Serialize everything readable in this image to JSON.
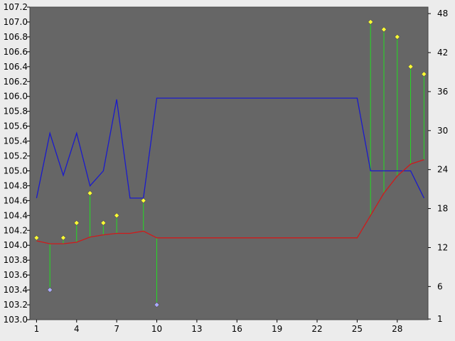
{
  "chart_data": {
    "type": "line",
    "title": "",
    "colors": {
      "background": "#ececec",
      "plot_area": "#666666",
      "blue_series": "#1a1acc",
      "red_series": "#d01a1a",
      "stem": "#22dd22",
      "marker_up": "#ffff33",
      "marker_down": "#aaaaff",
      "marker_edge": "#555555"
    },
    "x": [
      1,
      2,
      3,
      4,
      5,
      6,
      7,
      8,
      9,
      10,
      11,
      12,
      13,
      14,
      15,
      16,
      17,
      18,
      19,
      20,
      21,
      22,
      23,
      24,
      25,
      26,
      27,
      28,
      29,
      30
    ],
    "x_ticks": [
      "1",
      "4",
      "7",
      "10",
      "13",
      "16",
      "19",
      "22",
      "25",
      "28"
    ],
    "x_tick_values": [
      1,
      4,
      7,
      10,
      13,
      16,
      19,
      22,
      25,
      28
    ],
    "xlim": [
      0.5,
      30.3
    ],
    "y_left": {
      "ylim": [
        103.0,
        107.2
      ],
      "ticks": [
        "103.0",
        "103.2",
        "103.4",
        "103.6",
        "103.8",
        "104.0",
        "104.2",
        "104.4",
        "104.6",
        "104.8",
        "105.0",
        "105.2",
        "105.4",
        "105.6",
        "105.8",
        "106.0",
        "106.2",
        "106.4",
        "106.6",
        "106.8",
        "107.0",
        "107.2"
      ],
      "tick_values": [
        103.0,
        103.2,
        103.4,
        103.6,
        103.8,
        104.0,
        104.2,
        104.4,
        104.6,
        104.8,
        105.0,
        105.2,
        105.4,
        105.6,
        105.8,
        106.0,
        106.2,
        106.4,
        106.6,
        106.8,
        107.0,
        107.2
      ]
    },
    "y_right": {
      "ylim": [
        0.9,
        49.0
      ],
      "ticks": [
        "1",
        "6",
        "12",
        "18",
        "24",
        "30",
        "36",
        "42",
        "48"
      ],
      "tick_values": [
        1,
        6,
        12,
        18,
        24,
        30,
        36,
        42,
        48
      ]
    },
    "series": [
      {
        "axis": "right",
        "values": [
          19.6,
          29.6,
          23.1,
          29.6,
          21.5,
          23.8,
          34.8,
          19.6,
          19.6,
          35.0,
          35.0,
          35.0,
          35.0,
          35.0,
          35.0,
          35.0,
          35.0,
          35.0,
          35.0,
          35.0,
          35.0,
          35.0,
          35.0,
          35.0,
          35.0,
          23.8,
          23.8,
          23.8,
          23.8,
          19.6
        ]
      },
      {
        "axis": "left",
        "values": [
          104.06,
          104.02,
          104.02,
          104.04,
          104.11,
          104.14,
          104.16,
          104.16,
          104.19,
          104.1,
          104.1,
          104.1,
          104.1,
          104.1,
          104.1,
          104.1,
          104.1,
          104.1,
          104.1,
          104.1,
          104.1,
          104.1,
          104.1,
          104.1,
          104.1,
          104.4,
          104.7,
          104.93,
          105.09,
          105.15
        ]
      }
    ],
    "markers": [
      {
        "x": 1,
        "value": 104.1,
        "base": 104.06
      },
      {
        "x": 2,
        "value": 103.4,
        "base": 104.02
      },
      {
        "x": 3,
        "value": 104.1,
        "base": 104.02
      },
      {
        "x": 4,
        "value": 104.3,
        "base": 104.04
      },
      {
        "x": 5,
        "value": 104.7,
        "base": 104.11
      },
      {
        "x": 6,
        "value": 104.3,
        "base": 104.14
      },
      {
        "x": 7,
        "value": 104.4,
        "base": 104.16
      },
      {
        "x": 9,
        "value": 104.6,
        "base": 104.19
      },
      {
        "x": 10,
        "value": 103.2,
        "base": 104.1
      },
      {
        "x": 26,
        "value": 107.0,
        "base": 104.4
      },
      {
        "x": 27,
        "value": 106.9,
        "base": 104.7
      },
      {
        "x": 28,
        "value": 106.8,
        "base": 104.93
      },
      {
        "x": 29,
        "value": 106.4,
        "base": 105.09
      },
      {
        "x": 30,
        "value": 106.3,
        "base": 105.15
      }
    ]
  }
}
